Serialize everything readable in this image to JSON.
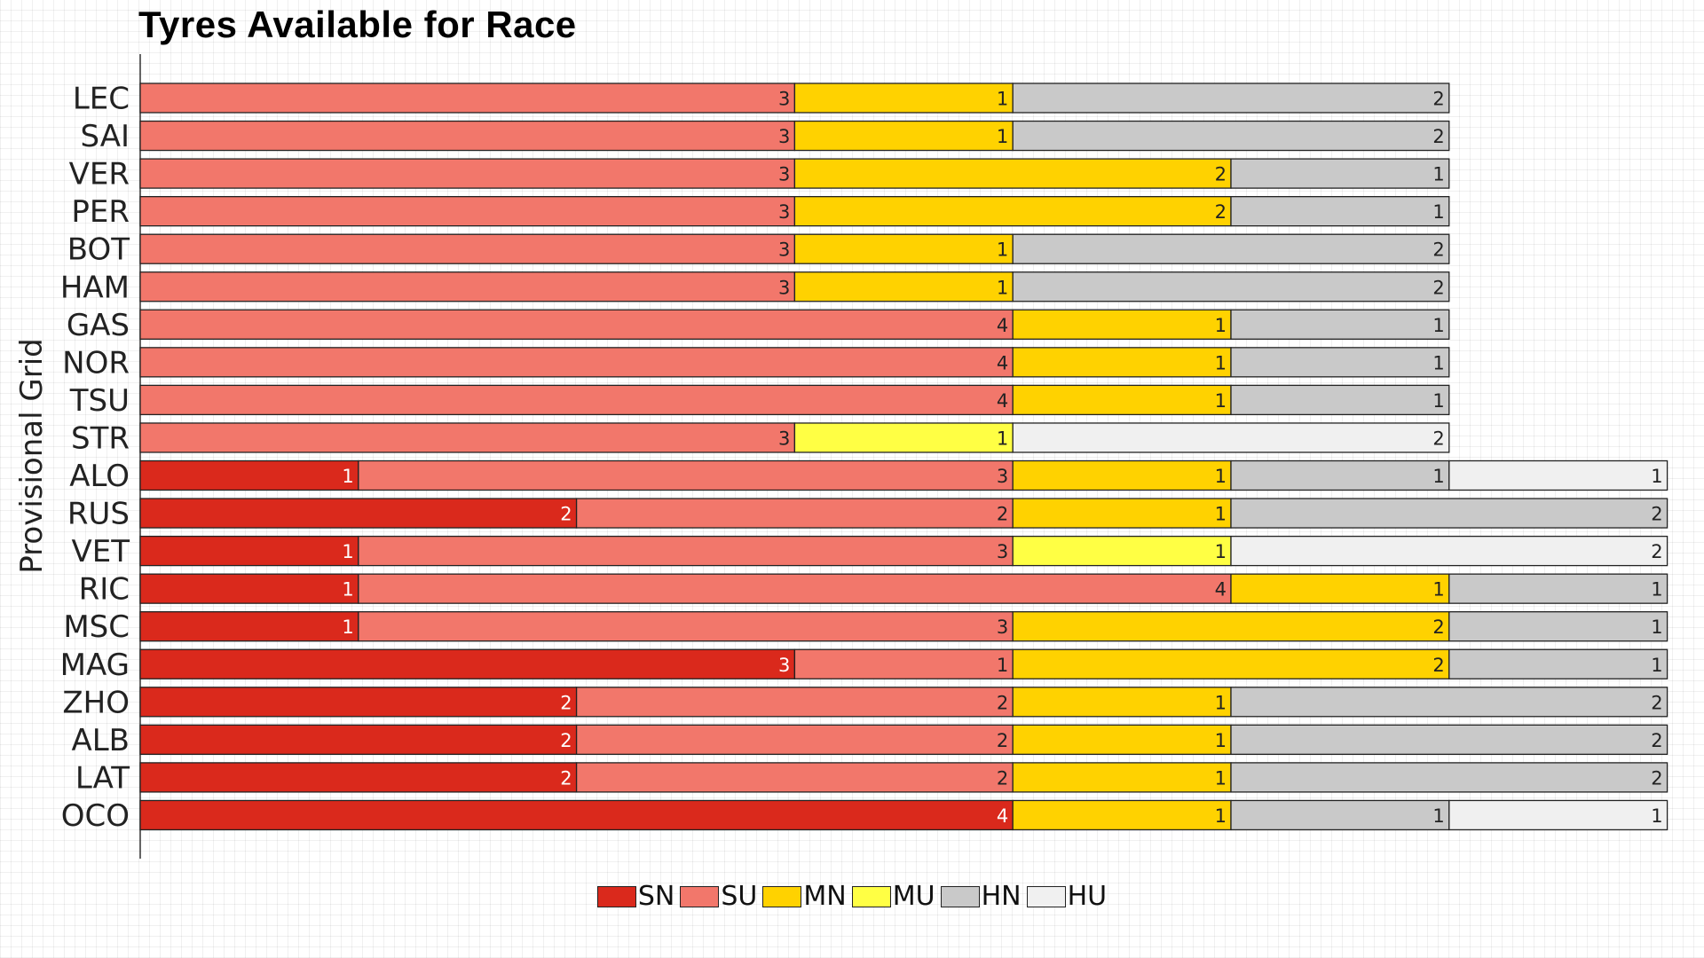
{
  "chart_data": {
    "type": "bar",
    "orientation": "horizontal",
    "stacked": true,
    "title": "Tyres Available for Race",
    "ylabel": "Provisional Grid",
    "xlabel": "",
    "xlim": [
      0,
      7
    ],
    "grid": false,
    "legend_position": "bottom",
    "categories": [
      "LEC",
      "SAI",
      "VER",
      "PER",
      "BOT",
      "HAM",
      "GAS",
      "NOR",
      "TSU",
      "STR",
      "ALO",
      "RUS",
      "VET",
      "RIC",
      "MSC",
      "MAG",
      "ZHO",
      "ALB",
      "LAT",
      "OCO"
    ],
    "series": [
      {
        "name": "SN",
        "color": "#da291c",
        "values": [
          0,
          0,
          0,
          0,
          0,
          0,
          0,
          0,
          0,
          0,
          1,
          2,
          1,
          1,
          1,
          3,
          2,
          2,
          2,
          4
        ]
      },
      {
        "name": "SU",
        "color": "#f2776b",
        "values": [
          3,
          3,
          3,
          3,
          3,
          3,
          4,
          4,
          4,
          3,
          3,
          2,
          3,
          4,
          3,
          1,
          2,
          2,
          2,
          0
        ]
      },
      {
        "name": "MN",
        "color": "#ffd200",
        "values": [
          1,
          1,
          2,
          2,
          1,
          1,
          1,
          1,
          1,
          0,
          1,
          1,
          0,
          1,
          2,
          2,
          1,
          1,
          1,
          1
        ]
      },
      {
        "name": "MU",
        "color": "#ffff44",
        "values": [
          0,
          0,
          0,
          0,
          0,
          0,
          0,
          0,
          0,
          1,
          0,
          0,
          1,
          0,
          0,
          0,
          0,
          0,
          0,
          0
        ]
      },
      {
        "name": "HN",
        "color": "#c9c9c9",
        "values": [
          2,
          2,
          1,
          1,
          2,
          2,
          1,
          1,
          1,
          0,
          1,
          2,
          0,
          1,
          1,
          1,
          2,
          2,
          2,
          1
        ]
      },
      {
        "name": "HU",
        "color": "#f0f0f0",
        "values": [
          0,
          0,
          0,
          0,
          0,
          0,
          0,
          0,
          0,
          2,
          1,
          0,
          2,
          0,
          0,
          0,
          0,
          0,
          0,
          1
        ]
      }
    ]
  }
}
